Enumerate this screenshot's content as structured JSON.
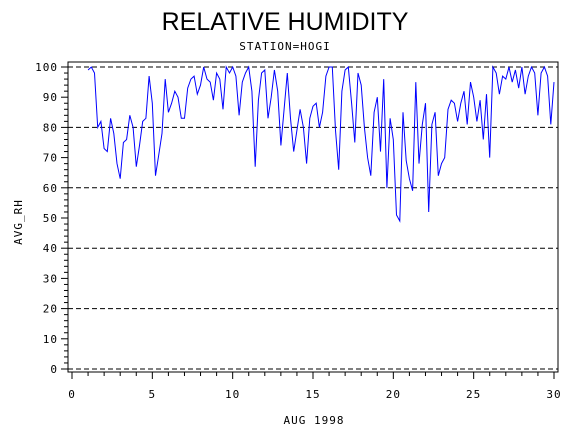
{
  "chart_data": {
    "type": "line",
    "title": "RELATIVE HUMIDITY",
    "subtitle": "STATION=HOGI",
    "xlabel": "AUG 1998",
    "ylabel": "AVG_RH",
    "xlim": [
      0,
      30
    ],
    "ylim": [
      0,
      100
    ],
    "xticks": [
      0,
      5,
      10,
      15,
      20,
      25,
      30
    ],
    "yticks": [
      0,
      10,
      20,
      30,
      40,
      50,
      60,
      70,
      80,
      90,
      100
    ],
    "gridlines_y": [
      0,
      20,
      40,
      60,
      80,
      100
    ],
    "grid": "dashed horizontal",
    "line_color": "#0000ff",
    "series": [
      {
        "x": [
          1.0,
          1.2,
          1.4,
          1.6,
          1.8,
          2.0,
          2.2,
          2.4,
          2.6,
          2.8,
          3.0,
          3.2,
          3.4,
          3.6,
          3.8,
          4.0,
          4.2,
          4.4,
          4.6,
          4.8,
          5.0,
          5.2,
          5.4,
          5.6,
          5.8,
          6.0,
          6.2,
          6.4,
          6.6,
          6.8,
          7.0,
          7.2,
          7.4,
          7.6,
          7.8,
          8.0,
          8.2,
          8.4,
          8.6,
          8.8,
          9.0,
          9.2,
          9.4,
          9.6,
          9.8,
          10.0,
          10.2,
          10.4,
          10.6,
          10.8,
          11.0,
          11.2,
          11.4,
          11.6,
          11.8,
          12.0,
          12.2,
          12.4,
          12.6,
          12.8,
          13.0,
          13.2,
          13.4,
          13.6,
          13.8,
          14.0,
          14.2,
          14.4,
          14.6,
          14.8,
          15.0,
          15.2,
          15.4,
          15.6,
          15.8,
          16.0,
          16.2,
          16.4,
          16.6,
          16.8,
          17.0,
          17.2,
          17.4,
          17.6,
          17.8,
          18.0,
          18.2,
          18.4,
          18.6,
          18.8,
          19.0,
          19.2,
          19.4,
          19.6,
          19.8,
          20.0,
          20.2,
          20.4,
          20.6,
          20.8,
          21.0,
          21.2,
          21.4,
          21.6,
          21.8,
          22.0,
          22.2,
          22.4,
          22.6,
          22.8,
          23.0,
          23.2,
          23.4,
          23.6,
          23.8,
          24.0,
          24.2,
          24.4,
          24.6,
          24.8,
          25.0,
          25.2,
          25.4,
          25.6,
          25.8,
          26.0,
          26.2,
          26.4,
          26.6,
          26.8,
          27.0,
          27.2,
          27.4,
          27.6,
          27.8,
          28.0,
          28.2,
          28.4,
          28.6,
          28.8,
          29.0,
          29.2,
          29.4,
          29.6,
          29.8,
          30.0
        ],
        "y": [
          99,
          100,
          98,
          80,
          82,
          73,
          72,
          83,
          78,
          68,
          63,
          75,
          76,
          84,
          80,
          67,
          74,
          82,
          83,
          97,
          88,
          64,
          71,
          78,
          96,
          85,
          88,
          92,
          90,
          83,
          83,
          93,
          96,
          97,
          91,
          94,
          100,
          96,
          95,
          89,
          98,
          96,
          86,
          100,
          98,
          100,
          97,
          84,
          95,
          98,
          100,
          92,
          67,
          89,
          98,
          99,
          83,
          90,
          99,
          92,
          74,
          86,
          98,
          83,
          72,
          79,
          86,
          80,
          68,
          83,
          87,
          88,
          80,
          85,
          97,
          100,
          100,
          79,
          66,
          92,
          99,
          100,
          88,
          75,
          98,
          94,
          80,
          70,
          64,
          85,
          90,
          72,
          96,
          60,
          83,
          76,
          51,
          49,
          85,
          69,
          63,
          59,
          95,
          68,
          81,
          88,
          52,
          81,
          85,
          64,
          68,
          70,
          86,
          89,
          88,
          82,
          88,
          92,
          81,
          95,
          90,
          82,
          89,
          76,
          91,
          70,
          100,
          98,
          91,
          97,
          96,
          100,
          95,
          99,
          93,
          100,
          91,
          97,
          100,
          98,
          84,
          98,
          100,
          97,
          81,
          95
        ]
      }
    ]
  }
}
